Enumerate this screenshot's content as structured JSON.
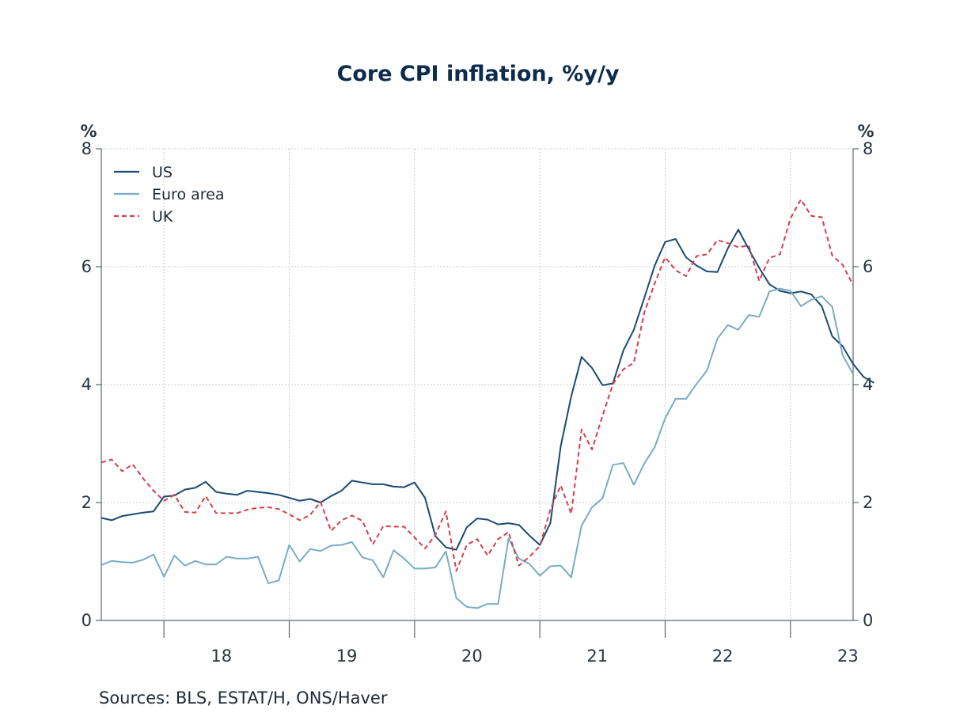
{
  "chart_data": {
    "type": "line",
    "title": "Core CPI inflation, %y/y",
    "source": "Sources:  BLS, ESTAT/H, ONS/Haver",
    "y_unit_left": "%",
    "y_unit_right": "%",
    "ylim": [
      0,
      8
    ],
    "y_ticks": [
      0,
      2,
      4,
      6,
      8
    ],
    "y_tick_labels": [
      "0",
      "2",
      "4",
      "6",
      "8"
    ],
    "x_tick_labels": [
      "18",
      "19",
      "20",
      "21",
      "22",
      "23"
    ],
    "x_start": "2017-07",
    "grid": true,
    "legend_position": "top-left",
    "colors": {
      "US": "#1b4a73",
      "Euro area": "#79adc4",
      "UK": "#d2404c"
    },
    "series": [
      {
        "name": "US",
        "style": "solid",
        "values": [
          1.74,
          1.7,
          1.77,
          1.8,
          1.83,
          1.85,
          2.1,
          2.12,
          2.22,
          2.25,
          2.35,
          2.18,
          2.15,
          2.13,
          2.2,
          2.18,
          2.16,
          2.13,
          2.08,
          2.03,
          2.06,
          2.0,
          2.11,
          2.2,
          2.37,
          2.34,
          2.31,
          2.31,
          2.27,
          2.26,
          2.34,
          2.08,
          1.43,
          1.24,
          1.2,
          1.58,
          1.73,
          1.71,
          1.63,
          1.65,
          1.62,
          1.44,
          1.28,
          1.65,
          2.96,
          3.8,
          4.47,
          4.28,
          3.99,
          4.02,
          4.58,
          4.93,
          5.47,
          6.02,
          6.42,
          6.47,
          6.16,
          6.02,
          5.92,
          5.91,
          6.31,
          6.63,
          6.3,
          5.98,
          5.7,
          5.59,
          5.55,
          5.58,
          5.53,
          5.33,
          4.82,
          4.65,
          4.35,
          4.13,
          4.03
        ]
      },
      {
        "name": "Euro area",
        "style": "solid",
        "values": [
          0.94,
          1.01,
          0.99,
          0.98,
          1.03,
          1.12,
          0.74,
          1.1,
          0.93,
          1.01,
          0.95,
          0.95,
          1.08,
          1.05,
          1.05,
          1.08,
          0.63,
          0.68,
          1.28,
          1.0,
          1.21,
          1.18,
          1.27,
          1.28,
          1.33,
          1.07,
          1.02,
          0.73,
          1.19,
          1.05,
          0.88,
          0.88,
          0.9,
          1.17,
          0.38,
          0.23,
          0.21,
          0.28,
          0.28,
          1.39,
          1.05,
          0.96,
          0.76,
          0.92,
          0.93,
          0.73,
          1.61,
          1.92,
          2.07,
          2.64,
          2.67,
          2.3,
          2.66,
          2.94,
          3.43,
          3.76,
          3.76,
          4.01,
          4.24,
          4.78,
          5.01,
          4.93,
          5.18,
          5.15,
          5.58,
          5.63,
          5.59,
          5.33,
          5.44,
          5.5,
          5.32,
          4.5,
          4.18
        ]
      },
      {
        "name": "UK",
        "style": "dashed",
        "values": [
          2.68,
          2.73,
          2.53,
          2.65,
          2.41,
          2.2,
          2.03,
          2.13,
          1.84,
          1.83,
          2.11,
          1.82,
          1.82,
          1.82,
          1.88,
          1.91,
          1.92,
          1.89,
          1.8,
          1.7,
          1.79,
          2.01,
          1.52,
          1.7,
          1.78,
          1.69,
          1.29,
          1.6,
          1.59,
          1.59,
          1.41,
          1.22,
          1.45,
          1.85,
          0.84,
          1.28,
          1.38,
          1.1,
          1.38,
          1.5,
          0.93,
          1.08,
          1.26,
          1.88,
          2.29,
          1.81,
          3.24,
          2.9,
          3.47,
          4.01,
          4.26,
          4.37,
          5.22,
          5.72,
          6.16,
          5.94,
          5.84,
          6.18,
          6.21,
          6.45,
          6.4,
          6.33,
          6.36,
          5.76,
          6.15,
          6.21,
          6.82,
          7.14,
          6.86,
          6.84,
          6.19,
          6.03,
          5.69
        ]
      }
    ]
  }
}
